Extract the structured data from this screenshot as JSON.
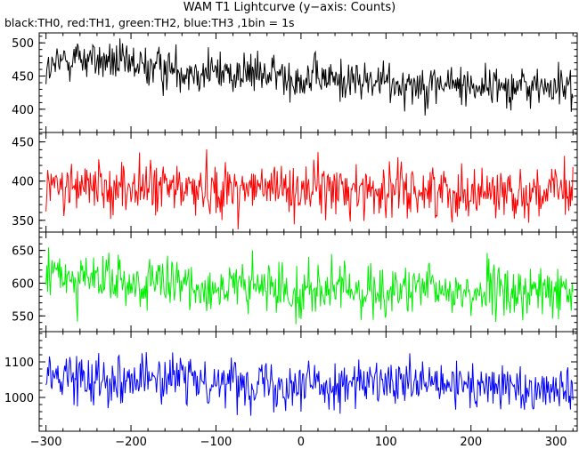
{
  "title": "WAM T1 Lightcurve (y−axis: Counts)",
  "subtitle": "black:TH0, red:TH1, green:TH2, blue:TH3 ,1bin = 1s",
  "chart_data": {
    "type": "line",
    "xlim": [
      -308,
      325
    ],
    "xticks": [
      -300,
      -200,
      -100,
      0,
      100,
      200,
      300
    ],
    "xtick_labels": [
      "−300",
      "−200",
      "−100",
      "0",
      "100",
      "200",
      "300"
    ],
    "grid": false,
    "panels": [
      {
        "name": "TH0",
        "color": "#000000",
        "ylim": [
          365,
          515
        ],
        "yticks": [
          400,
          450,
          500
        ],
        "ytick_labels": [
          "400",
          "450",
          "500"
        ],
        "trend": [
          [
            -300,
            455
          ],
          [
            -270,
            480
          ],
          [
            -200,
            465
          ],
          [
            0,
            448
          ],
          [
            100,
            440
          ],
          [
            320,
            432
          ]
        ],
        "noise_sd": 16
      },
      {
        "name": "TH1",
        "color": "#ff0000",
        "ylim": [
          335,
          462
        ],
        "yticks": [
          350,
          400,
          450
        ],
        "ytick_labels": [
          "350",
          "400",
          "450"
        ],
        "trend": [
          [
            -300,
            392
          ],
          [
            0,
            390
          ],
          [
            320,
            385
          ]
        ],
        "noise_sd": 17
      },
      {
        "name": "TH2",
        "color": "#00ee00",
        "ylim": [
          526,
          678
        ],
        "yticks": [
          550,
          600,
          650
        ],
        "ytick_labels": [
          "550",
          "600",
          "650"
        ],
        "trend": [
          [
            -300,
            615
          ],
          [
            -200,
            598
          ],
          [
            0,
            590
          ],
          [
            320,
            585
          ]
        ],
        "noise_sd": 20
      },
      {
        "name": "TH3",
        "color": "#0000ff",
        "ylim": [
          905,
          1185
        ],
        "yticks": [
          1000,
          1100
        ],
        "ytick_labels": [
          "1000",
          "1100"
        ],
        "trend": [
          [
            -300,
            1060
          ],
          [
            -200,
            1055
          ],
          [
            0,
            1040
          ],
          [
            320,
            1025
          ]
        ],
        "noise_sd": 33
      }
    ]
  }
}
